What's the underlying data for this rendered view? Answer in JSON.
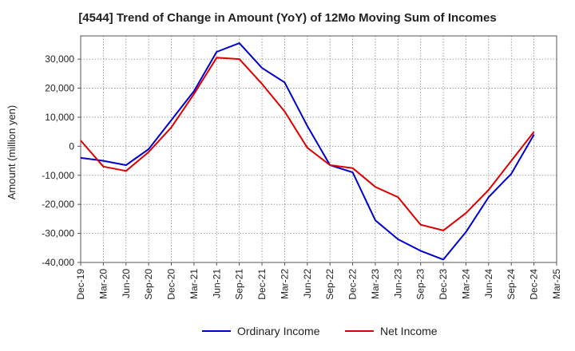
{
  "chart_data": {
    "type": "line",
    "title": "[4544]  Trend of Change in Amount (YoY) of 12Mo Moving Sum of Incomes",
    "xlabel": "",
    "ylabel": "Amount (million yen)",
    "ylim": [
      -40000,
      38000
    ],
    "yticks": [
      -40000,
      -30000,
      -20000,
      -10000,
      0,
      10000,
      20000,
      30000
    ],
    "ytick_labels": [
      "-40,000",
      "-30,000",
      "-20,000",
      "-10,000",
      "0",
      "10,000",
      "20,000",
      "30,000"
    ],
    "grid": true,
    "legend_position": "bottom",
    "categories": [
      "Dec-19",
      "Mar-20",
      "Jun-20",
      "Sep-20",
      "Dec-20",
      "Mar-21",
      "Jun-21",
      "Sep-21",
      "Dec-21",
      "Mar-22",
      "Jun-22",
      "Sep-22",
      "Dec-22",
      "Mar-23",
      "Jun-23",
      "Sep-23",
      "Dec-23",
      "Mar-24",
      "Jun-24",
      "Sep-24",
      "Dec-24",
      "Mar-25"
    ],
    "series": [
      {
        "name": "Ordinary Income",
        "color": "#0000cc",
        "values": [
          -4000,
          -5000,
          -6500,
          -1000,
          9000,
          19000,
          32500,
          35500,
          27000,
          22000,
          7000,
          -6500,
          -9000,
          -25500,
          -32000,
          -36000,
          -39000,
          -29500,
          -17500,
          -9500,
          4000,
          null
        ]
      },
      {
        "name": "Net Income",
        "color": "#dd0000",
        "values": [
          2000,
          -7000,
          -8500,
          -2000,
          6500,
          18000,
          30500,
          30000,
          21500,
          12000,
          -500,
          -6500,
          -7500,
          -14000,
          -17500,
          -27000,
          -29000,
          -23000,
          -15000,
          -5000,
          5000,
          null
        ]
      }
    ]
  }
}
